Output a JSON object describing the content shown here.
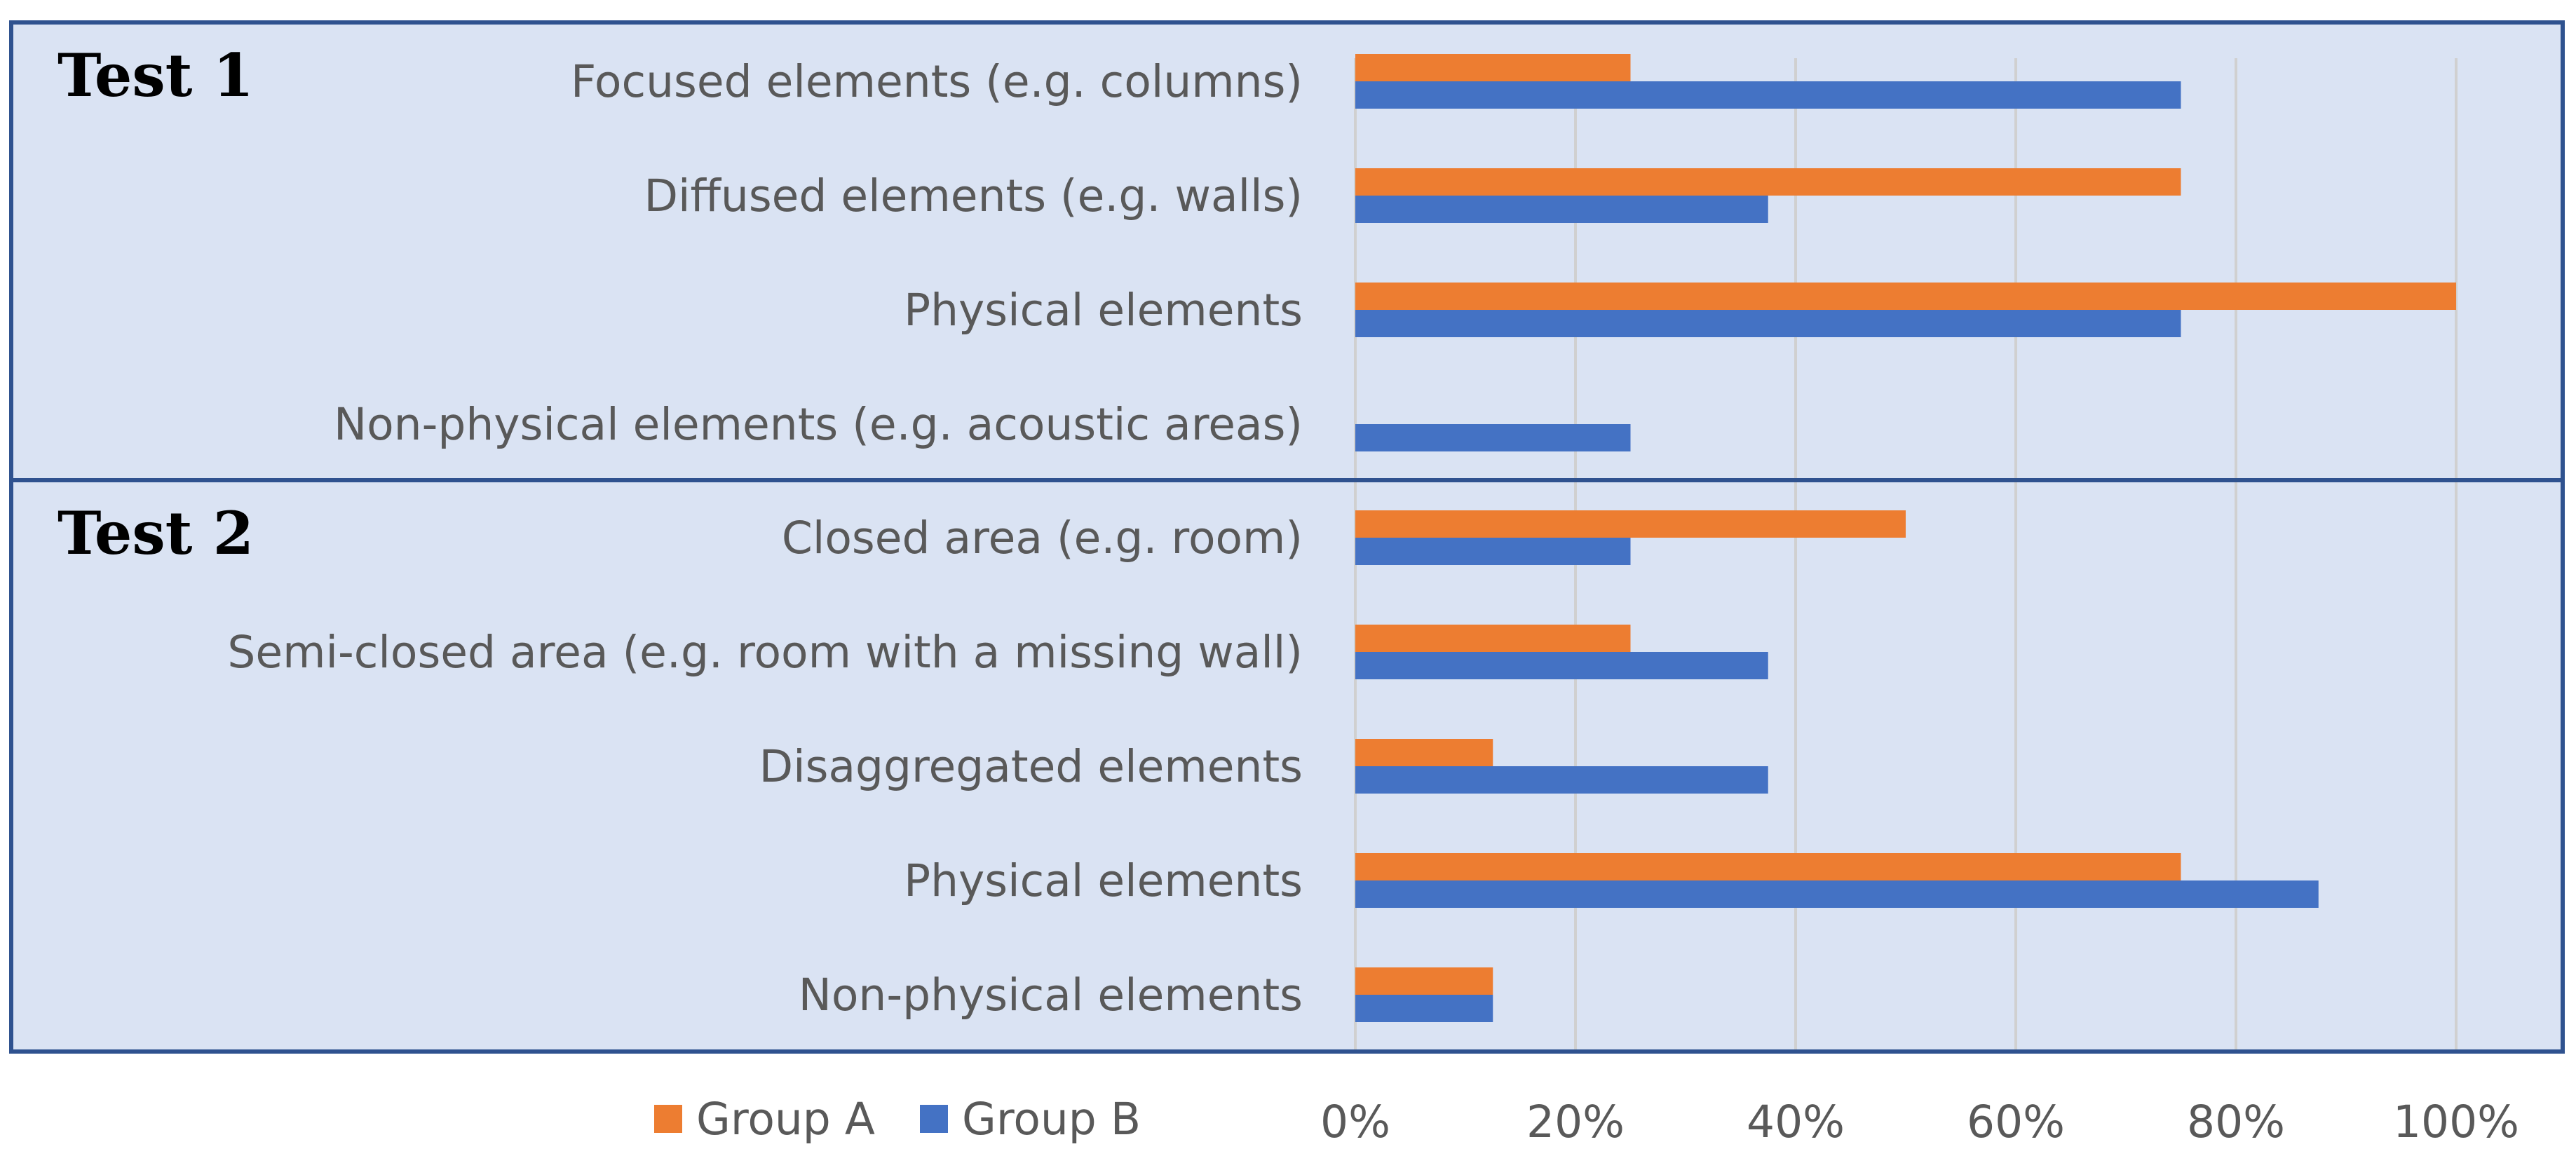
{
  "colors": {
    "group_a": "#ED7D31",
    "group_b": "#4472C4",
    "panel_background": "#DAE3F3",
    "panel_border": "#2F528F",
    "gridline": "#D0D0D0",
    "text": "#595959"
  },
  "chart_data": {
    "type": "bar",
    "orientation": "horizontal",
    "xlim": [
      0,
      100
    ],
    "x_ticks": [
      "0%",
      "20%",
      "40%",
      "60%",
      "80%",
      "100%"
    ],
    "grid": "vertical",
    "legend_position": "bottom",
    "series_order": [
      "Group A",
      "Group B"
    ],
    "panels": [
      {
        "title": "Test 1",
        "categories": [
          "Focused elements (e.g. columns)",
          "Diffused elements (e.g. walls)",
          "Physical elements",
          "Non-physical elements (e.g. acoustic areas)"
        ],
        "series": [
          {
            "name": "Group A",
            "values": [
              25,
              75,
              100,
              0
            ]
          },
          {
            "name": "Group B",
            "values": [
              75,
              37.5,
              75,
              25
            ]
          }
        ]
      },
      {
        "title": "Test 2",
        "categories": [
          "Closed area (e.g. room)",
          "Semi-closed area (e.g. room with a missing wall)",
          "Disaggregated elements",
          "Physical elements",
          "Non-physical elements"
        ],
        "series": [
          {
            "name": "Group A",
            "values": [
              50,
              25,
              12.5,
              75,
              12.5
            ]
          },
          {
            "name": "Group B",
            "values": [
              25,
              37.5,
              37.5,
              87.5,
              12.5
            ]
          }
        ]
      }
    ]
  }
}
